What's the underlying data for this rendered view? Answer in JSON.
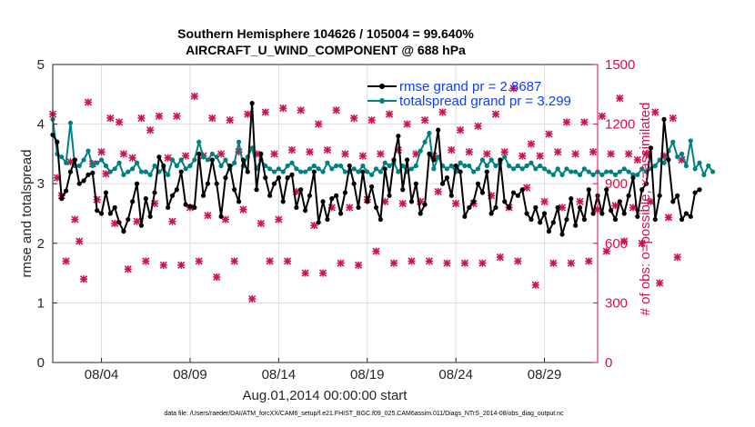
{
  "chart_data": {
    "type": "line",
    "title": "Southern Hemisphere 104626 / 105004 = 99.640%",
    "subtitle": "AIRCRAFT_U_WIND_COMPONENT @ 688 hPa",
    "xlabel": "Aug.01,2014 00:00:00 start",
    "ylabel": "rmse and totalspread",
    "ylabel_right": "# of obs: o=possible; ×=assimilated",
    "footnote": "data file: /Users/raeder/DAI/ATM_forcXX/CAM6_setup/f.e21.FHIST_BGC.f09_025.CAM6assim.011/Diags_NTrS_2014-08/obs_diag_output.nc",
    "x_tick_labels": [
      "08/04",
      "08/09",
      "08/14",
      "08/19",
      "08/24",
      "08/29"
    ],
    "x_tick_days": [
      4,
      9,
      14,
      19,
      24,
      29
    ],
    "xlim_days": [
      1.25,
      32.0
    ],
    "ylim": [
      0,
      5
    ],
    "y_ticks": [
      0,
      1,
      2,
      3,
      4,
      5
    ],
    "ylim_right": [
      0,
      1500
    ],
    "y_ticks_right": [
      0,
      300,
      600,
      900,
      1200,
      1500
    ],
    "grid": true,
    "legend_location": "top-right",
    "colors": {
      "rmse": "#000000",
      "spread": "#008080",
      "obs": "#d1114d",
      "legend_text": "#0a3fff"
    },
    "series": [
      {
        "name": "rmse grand pr = 2.8687",
        "color": "#000000",
        "x_start_day": 1.25,
        "x_step_days": 0.25,
        "values": [
          3.82,
          3.7,
          2.75,
          2.88,
          3.2,
          3.4,
          3.0,
          3.05,
          3.15,
          3.18,
          2.55,
          2.5,
          2.85,
          2.5,
          2.6,
          2.35,
          2.2,
          2.4,
          2.7,
          3.0,
          2.3,
          2.75,
          2.45,
          2.85,
          3.45,
          3.3,
          2.6,
          2.8,
          2.9,
          3.2,
          2.65,
          2.62,
          2.6,
          3.5,
          2.8,
          3.0,
          3.4,
          3.0,
          2.45,
          3.1,
          3.3,
          2.9,
          2.7,
          3.4,
          3.2,
          4.35,
          2.9,
          3.5,
          3.1,
          2.8,
          3.0,
          3.1,
          2.7,
          3.1,
          3.15,
          2.6,
          2.9,
          2.55,
          2.8,
          3.2,
          2.35,
          2.7,
          2.4,
          2.75,
          2.8,
          2.5,
          2.85,
          3.3,
          3.0,
          2.6,
          3.2,
          2.7,
          2.95,
          2.6,
          2.4,
          3.25,
          2.8,
          3.4,
          3.8,
          2.9,
          3.4,
          2.7,
          3.0,
          2.5,
          2.65,
          3.5,
          3.4,
          3.9,
          3.0,
          3.1,
          2.8,
          3.3,
          3.2,
          2.45,
          2.6,
          2.7,
          3.0,
          2.85,
          3.2,
          2.5,
          2.6,
          3.4,
          2.7,
          2.6,
          2.85,
          2.8,
          2.9,
          2.5,
          2.4,
          2.6,
          2.35,
          2.5,
          2.2,
          2.35,
          2.6,
          2.15,
          2.4,
          2.75,
          2.3,
          2.6,
          2.4,
          2.9,
          2.5,
          2.8,
          2.5,
          2.9,
          2.55,
          2.4,
          2.7,
          2.5,
          2.8,
          3.1,
          2.45,
          2.9,
          3.0,
          3.6,
          2.4,
          2.8,
          4.08,
          3.4,
          2.7,
          2.8,
          2.4,
          2.5,
          2.45,
          2.85,
          2.9
        ]
      },
      {
        "name": "totalspread grand pr = 3.299",
        "color": "#008080",
        "x_start_day": 1.25,
        "x_step_days": 0.25,
        "values": [
          4.08,
          3.5,
          3.45,
          3.35,
          4.02,
          3.3,
          3.3,
          3.4,
          3.55,
          3.3,
          3.35,
          3.4,
          3.3,
          3.2,
          3.25,
          3.35,
          3.15,
          3.2,
          3.25,
          3.35,
          3.2,
          3.2,
          3.15,
          3.3,
          3.2,
          3.25,
          3.15,
          3.4,
          3.3,
          3.4,
          3.25,
          3.3,
          3.4,
          3.7,
          3.45,
          3.4,
          3.5,
          3.45,
          3.3,
          3.4,
          3.25,
          3.35,
          3.7,
          3.3,
          3.45,
          3.6,
          3.25,
          3.4,
          3.3,
          3.25,
          3.2,
          3.25,
          3.2,
          3.3,
          3.35,
          3.25,
          3.2,
          3.2,
          3.25,
          3.3,
          3.25,
          3.2,
          3.35,
          3.25,
          3.3,
          3.3,
          3.2,
          3.2,
          3.25,
          3.2,
          3.3,
          3.2,
          3.15,
          3.25,
          3.2,
          3.35,
          3.3,
          3.35,
          3.2,
          3.3,
          3.2,
          3.25,
          3.3,
          3.55,
          3.7,
          3.85,
          3.25,
          3.45,
          3.3,
          3.25,
          3.3,
          3.2,
          3.35,
          3.3,
          3.3,
          3.2,
          3.25,
          3.4,
          3.3,
          3.4,
          3.3,
          3.35,
          3.45,
          3.3,
          3.25,
          3.3,
          3.25,
          3.3,
          3.35,
          3.25,
          3.3,
          3.25,
          3.2,
          3.15,
          3.25,
          3.15,
          3.25,
          3.2,
          3.2,
          3.15,
          3.25,
          3.2,
          3.15,
          3.2,
          3.15,
          3.2,
          3.2,
          3.15,
          3.2,
          3.25,
          3.2,
          3.15,
          3.15,
          3.25,
          3.2,
          3.25,
          3.3,
          3.4,
          3.35,
          3.55,
          3.7,
          3.45,
          3.5,
          3.3,
          3.72,
          3.25,
          3.35,
          3.15,
          3.3,
          3.2
        ]
      },
      {
        "name": "# of obs assimilated",
        "color": "#d1114d",
        "x_start_day": 1.25,
        "x_step_days": 0.25,
        "values": [
          1250,
          930,
          840,
          510,
          1010,
          720,
          610,
          420,
          1310,
          1000,
          820,
          1060,
          950,
          1230,
          700,
          1210,
          1050,
          470,
          1030,
          710,
          1230,
          510,
          1170,
          800,
          1240,
          490,
          1030,
          710,
          1240,
          490,
          1040,
          780,
          1340,
          510,
          1040,
          740,
          1230,
          430,
          1050,
          720,
          1220,
          510,
          1060,
          770,
          1250,
          320,
          1050,
          700,
          1260,
          510,
          1050,
          720,
          1280,
          510,
          1070,
          860,
          1270,
          450,
          1060,
          690,
          1200,
          450,
          1070,
          780,
          1270,
          500,
          1050,
          780,
          1230,
          490,
          1040,
          820,
          1220,
          560,
          1050,
          810,
          1250,
          500,
          1070,
          800,
          1200,
          510,
          1050,
          810,
          1220,
          510,
          1040,
          860,
          1260,
          500,
          1070,
          800,
          1170,
          500,
          1060,
          800,
          1190,
          500,
          1050,
          840,
          1250,
          530,
          1060,
          780,
          1380,
          510,
          1040,
          880,
          1100,
          390,
          1040,
          810,
          1150,
          500,
          1060,
          780,
          1210,
          500,
          1050,
          810,
          1210,
          510,
          1060,
          770,
          1240,
          560,
          1050,
          790,
          1330,
          610,
          1050,
          780,
          1020,
          600,
          1050,
          810,
          1260,
          400,
          1040,
          730,
          1230,
          530,
          1020
        ]
      }
    ]
  }
}
